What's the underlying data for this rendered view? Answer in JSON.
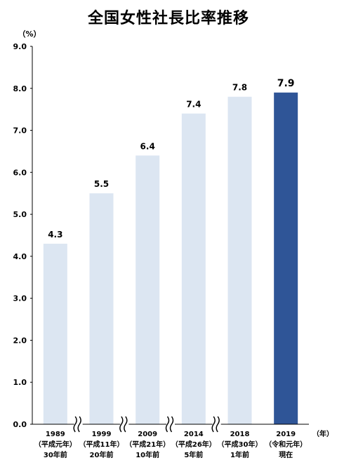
{
  "chart_data": {
    "type": "bar",
    "title": "全国女性社長比率推移",
    "ylabel": "（%）",
    "xlabel": "（年）",
    "ylim": [
      0,
      9
    ],
    "yticks": [
      "0.0",
      "1.0",
      "2.0",
      "3.0",
      "4.0",
      "5.0",
      "6.0",
      "7.0",
      "8.0",
      "9.0"
    ],
    "categories": [
      [
        "1989",
        "（平成元年）",
        "30年前"
      ],
      [
        "1999",
        "（平成11年）",
        "20年前"
      ],
      [
        "2009",
        "（平成21年）",
        "10年前"
      ],
      [
        "2014",
        "（平成26年）",
        "5年前"
      ],
      [
        "2018",
        "（平成30年）",
        "1年前"
      ],
      [
        "2019",
        "（令和元年）",
        "現在"
      ]
    ],
    "values": [
      4.3,
      5.5,
      6.4,
      7.4,
      7.8,
      7.9
    ],
    "labels": [
      "4.3",
      "5.5",
      "6.4",
      "7.4",
      "7.8",
      "7.9"
    ],
    "highlight_index": 5,
    "colors": {
      "bar": "#dce6f2",
      "highlight": "#2f5597",
      "axis": "#000000",
      "break": "#000000"
    },
    "grid": false,
    "legend": "none"
  }
}
